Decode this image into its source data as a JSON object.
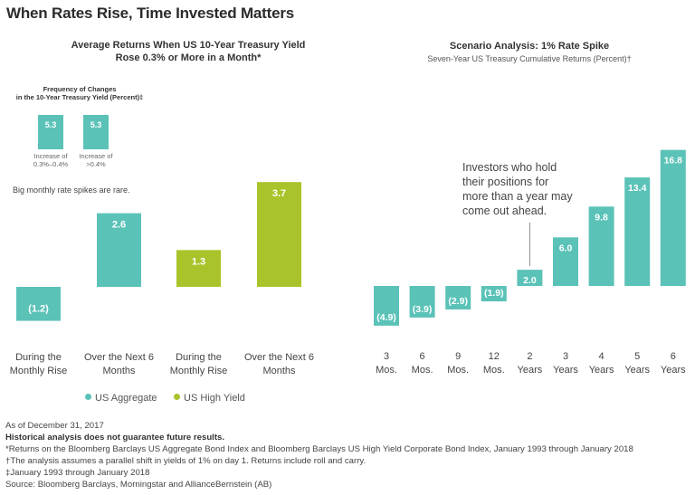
{
  "title": "When Rates Rise, Time Invested Matters",
  "left_chart": {
    "title_line1": "Average Returns When US 10-Year Treasury Yield",
    "title_line2": "Rose 0.3% or More in a Month*",
    "inset": {
      "title_line1": "Frequency of Changes",
      "title_line2": "in the 10-Year Treasury Yield (Percent)‡",
      "bars": [
        {
          "value": "5.3",
          "label_line1": "Increase of",
          "label_line2": "0.3%–0.4%"
        },
        {
          "value": "5.3",
          "label_line1": "Increase of",
          "label_line2": ">0.4%"
        }
      ],
      "note": "Big monthly rate spikes are rare."
    },
    "legend": [
      {
        "name": "US Aggregate",
        "color": "#5bc2b8"
      },
      {
        "name": "US High Yield",
        "color": "#a9c42a"
      }
    ]
  },
  "right_chart": {
    "title": "Scenario Analysis: 1% Rate Spike",
    "subtitle": "Seven-Year US Treasury Cumulative Returns (Percent)†",
    "callout": [
      "Investors who hold",
      "their positions for",
      "more than a year may",
      "come out ahead."
    ]
  },
  "chart_data": [
    {
      "type": "bar",
      "title": "Average Returns When US 10-Year Treasury Yield Rose 0.3% or More in a Month*",
      "categories": [
        [
          "During the",
          "Monthly Rise"
        ],
        [
          "Over the Next 6",
          "Months"
        ],
        [
          "During the",
          "Monthly Rise"
        ],
        [
          "Over the Next 6",
          "Months"
        ]
      ],
      "values": [
        -1.2,
        2.6,
        1.3,
        3.7
      ],
      "labels": [
        "(1.2)",
        "2.6",
        "1.3",
        "3.7"
      ],
      "series_index": [
        0,
        0,
        1,
        1
      ],
      "series": [
        {
          "name": "US Aggregate",
          "color": "#5bc2b8"
        },
        {
          "name": "US High Yield",
          "color": "#a9c42a"
        }
      ]
    },
    {
      "type": "bar",
      "title": "Scenario Analysis: 1% Rate Spike",
      "subtitle": "Seven-Year US Treasury Cumulative Returns (Percent)†",
      "categories": [
        [
          "3",
          "Mos."
        ],
        [
          "6",
          "Mos."
        ],
        [
          "9",
          "Mos."
        ],
        [
          "12",
          "Mos."
        ],
        [
          "2",
          "Years"
        ],
        [
          "3",
          "Years"
        ],
        [
          "4",
          "Years"
        ],
        [
          "5",
          "Years"
        ],
        [
          "6",
          "Years"
        ]
      ],
      "values": [
        -4.9,
        -3.9,
        -2.9,
        -1.9,
        2.0,
        6.0,
        9.8,
        13.4,
        16.8
      ],
      "labels": [
        "(4.9)",
        "(3.9)",
        "(2.9)",
        "(1.9)",
        "2.0",
        "6.0",
        "9.8",
        "13.4",
        "16.8"
      ],
      "color": "#5bc2b8"
    }
  ],
  "footnotes": {
    "as_of": "As of December 31, 2017",
    "disclaimer": "Historical analysis does not guarantee future results.",
    "star": "*Returns on the Bloomberg Barclays US Aggregate Bond Index and Bloomberg Barclays US High Yield Corporate Bond Index,  January 1993 through January 2018",
    "dagger": "†The analysis assumes a parallel shift in yields of 1% on day 1. Returns include roll and carry.",
    "ddagger": "‡January 1993 through January 2018",
    "source": "Source: Bloomberg Barclays, Morningstar and AllianceBernstein (AB)"
  }
}
